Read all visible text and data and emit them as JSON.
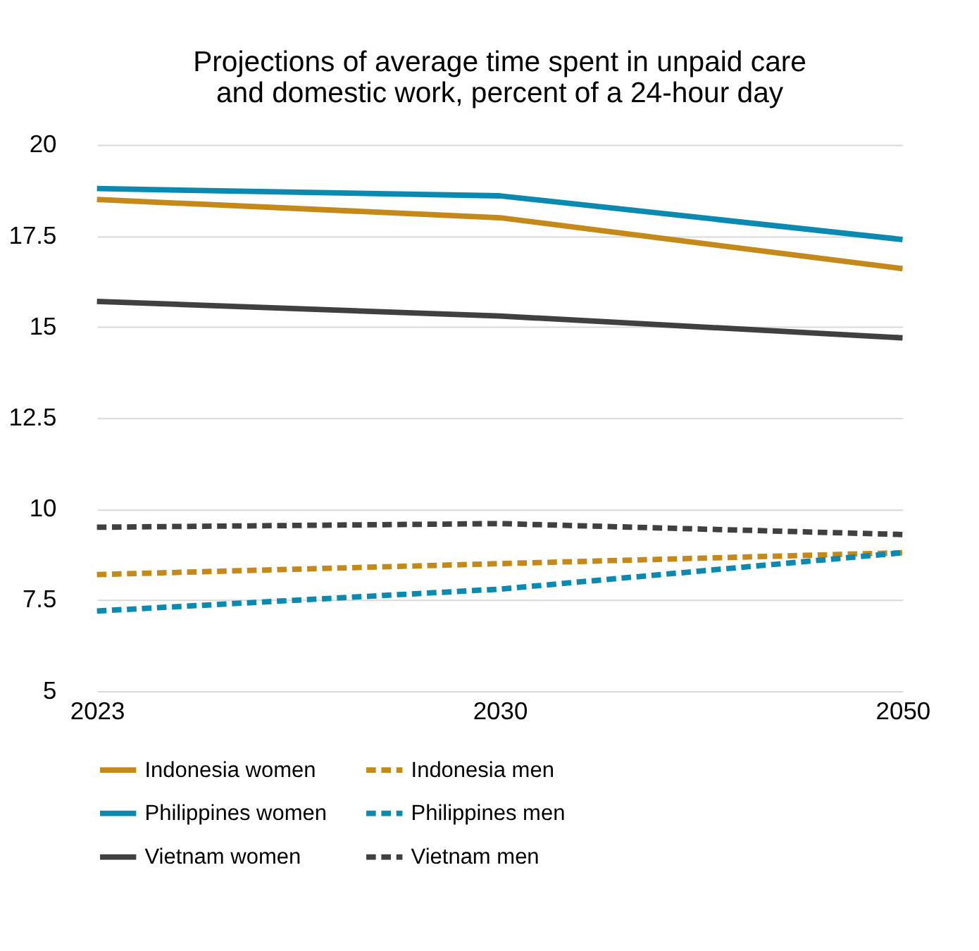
{
  "chart_data": {
    "type": "line",
    "title": [
      "Projections of average time spent in unpaid care",
      "and domestic work, percent of a 24-hour day"
    ],
    "categories": [
      "2023",
      "2030",
      "2050"
    ],
    "series": [
      {
        "name": "Indonesia women",
        "color": "#c5891a",
        "line_style": "solid",
        "values": [
          18.5,
          18.0,
          16.6
        ]
      },
      {
        "name": "Indonesia men",
        "color": "#c5891a",
        "line_style": "dashed",
        "values": [
          8.2,
          8.5,
          8.8
        ]
      },
      {
        "name": "Philippines women",
        "color": "#0a8ab0",
        "line_style": "solid",
        "values": [
          18.8,
          18.6,
          17.4
        ]
      },
      {
        "name": "Philippines men",
        "color": "#0a8ab0",
        "line_style": "dashed",
        "values": [
          7.2,
          7.8,
          8.8
        ]
      },
      {
        "name": "Vietnam women",
        "color": "#404040",
        "line_style": "solid",
        "values": [
          15.7,
          15.3,
          14.7
        ]
      },
      {
        "name": "Vietnam men",
        "color": "#404040",
        "line_style": "dashed",
        "values": [
          9.5,
          9.6,
          9.3
        ]
      }
    ],
    "ylim": [
      5,
      20
    ],
    "yticks": [
      5,
      7.5,
      10,
      12.5,
      15,
      17.5,
      20
    ],
    "grid": "y",
    "legend": "bottom",
    "marker": "none"
  }
}
